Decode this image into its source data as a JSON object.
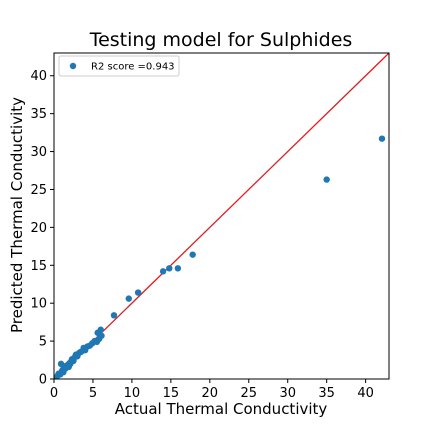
{
  "chart_data": {
    "type": "scatter",
    "title": "Testing model for Sulphides",
    "xlabel": "Actual Thermal Conductivity",
    "ylabel": "Predicted Thermal Conductivity",
    "xlim": [
      0,
      43
    ],
    "ylim": [
      0,
      43
    ],
    "xticks": [
      0,
      5,
      10,
      15,
      20,
      25,
      30,
      35,
      40
    ],
    "yticks": [
      0,
      5,
      10,
      15,
      20,
      25,
      30,
      35,
      40
    ],
    "grid": false,
    "legend_position": "top-left",
    "point_color": "#1f77b4",
    "line_color": "#e31a1c",
    "identity_line": {
      "from": [
        0,
        0
      ],
      "to": [
        43,
        43
      ]
    },
    "series": [
      {
        "name": "R2 score =0.943",
        "x": [
          0.3,
          0.5,
          0.6,
          0.8,
          0.9,
          1.0,
          1.1,
          1.2,
          1.3,
          1.4,
          1.5,
          1.6,
          1.8,
          1.9,
          2.0,
          2.1,
          2.2,
          2.3,
          2.5,
          2.6,
          2.8,
          3.0,
          3.1,
          3.3,
          3.5,
          3.8,
          4.0,
          4.3,
          4.6,
          4.9,
          5.2,
          5.5,
          5.6,
          5.8,
          6.0,
          6.1,
          7.7,
          9.6,
          10.8,
          14.0,
          14.8,
          15.9,
          17.8,
          35.0,
          42.1
        ],
        "y": [
          0.2,
          0.5,
          0.7,
          0.6,
          2.0,
          1.0,
          1.2,
          0.9,
          1.4,
          1.3,
          1.7,
          1.5,
          1.9,
          1.6,
          2.1,
          2.0,
          2.3,
          2.6,
          2.4,
          2.8,
          3.2,
          3.0,
          3.3,
          3.5,
          3.6,
          4.1,
          3.8,
          4.3,
          4.4,
          4.7,
          5.0,
          4.9,
          6.1,
          5.3,
          6.5,
          5.7,
          8.4,
          10.6,
          11.4,
          14.2,
          14.6,
          14.6,
          16.4,
          26.3,
          31.7
        ]
      }
    ]
  }
}
